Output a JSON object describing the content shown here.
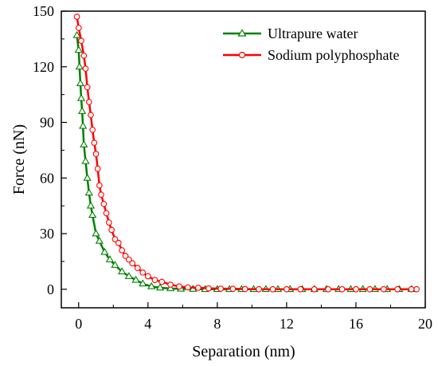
{
  "chart_data": {
    "type": "line",
    "title": "",
    "xlabel": "Separation (nm)",
    "ylabel": "Force (nN)",
    "xlim": [
      -1,
      20
    ],
    "ylim": [
      -10,
      150
    ],
    "xticks": [
      0,
      4,
      8,
      12,
      16,
      20
    ],
    "yticks": [
      0,
      30,
      60,
      90,
      120,
      150
    ],
    "grid": false,
    "legend_position": "top-right",
    "series": [
      {
        "name": "Ultrapure water",
        "color": "#008000",
        "marker": "triangle-open",
        "x": [
          -0.1,
          0.0,
          0.05,
          0.1,
          0.15,
          0.2,
          0.25,
          0.3,
          0.4,
          0.5,
          0.6,
          0.7,
          0.8,
          1.0,
          1.2,
          1.5,
          1.8,
          2.1,
          2.5,
          2.9,
          3.3,
          3.7,
          4.2,
          4.7,
          5.3,
          5.9,
          6.6,
          7.3,
          8.0,
          8.7,
          9.4,
          10.1,
          10.8,
          11.5,
          12.2,
          12.9,
          13.6,
          14.3,
          15.0,
          15.7,
          16.4,
          17.1,
          17.8,
          18.5,
          19.2
        ],
        "y": [
          137,
          129,
          120,
          111,
          103,
          96,
          88,
          78,
          69,
          60,
          52,
          45,
          40,
          30,
          26,
          20,
          16,
          13,
          9.5,
          7,
          5,
          3,
          1.5,
          0.8,
          0.4,
          0.2,
          0.1,
          0,
          0,
          0,
          0,
          0,
          0,
          0,
          0,
          0,
          0,
          0,
          0,
          0,
          0,
          0,
          0,
          0,
          0
        ]
      },
      {
        "name": "Sodium polyphosphate",
        "color": "#ff0000",
        "marker": "circle-open",
        "x": [
          -0.1,
          0.0,
          0.15,
          0.3,
          0.4,
          0.5,
          0.6,
          0.7,
          0.8,
          0.9,
          1.0,
          1.1,
          1.2,
          1.3,
          1.45,
          1.6,
          1.75,
          1.9,
          2.1,
          2.3,
          2.5,
          2.7,
          2.9,
          3.1,
          3.4,
          3.7,
          4.0,
          4.4,
          4.8,
          5.3,
          5.8,
          6.3,
          6.9,
          7.5,
          8.2,
          8.9,
          9.6,
          10.4,
          11.2,
          12.0,
          12.8,
          13.6,
          14.4,
          15.2,
          16.0,
          16.8,
          17.6,
          18.4,
          19.2,
          19.5
        ],
        "y": [
          147,
          141,
          134,
          126,
          119,
          109,
          101,
          94,
          86,
          79,
          73,
          65,
          56,
          51,
          46,
          41,
          36,
          32,
          27,
          25,
          21,
          18,
          16,
          14,
          11.5,
          9,
          7,
          5,
          4,
          2.5,
          1.5,
          1,
          0.8,
          0.5,
          0.3,
          0.2,
          0.1,
          0,
          0,
          0,
          0,
          0,
          0,
          0,
          0,
          0,
          0,
          0,
          0,
          0
        ]
      }
    ]
  }
}
